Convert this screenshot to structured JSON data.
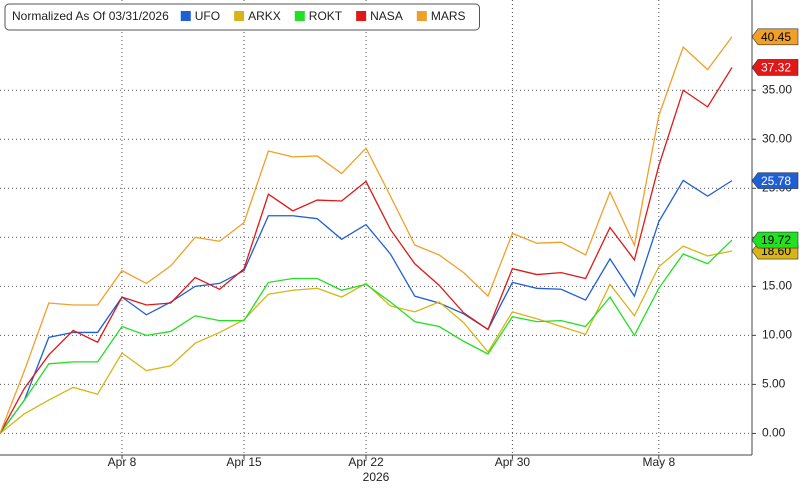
{
  "chart_data": {
    "type": "line",
    "title": "Normalized As Of 03/31/2026",
    "x_annotation": "2026",
    "categories": [
      null,
      null,
      null,
      null,
      null,
      "Apr 8",
      null,
      null,
      null,
      null,
      "Apr 15",
      null,
      null,
      null,
      null,
      "Apr 22",
      null,
      null,
      null,
      null,
      null,
      "Apr 30",
      null,
      null,
      null,
      null,
      null,
      "May 8",
      null,
      null,
      null
    ],
    "series": [
      {
        "name": "UFO",
        "color": "#1f5fd6",
        "values": [
          0,
          3.4,
          9.8,
          10.3,
          10.3,
          13.9,
          12.1,
          13.4,
          15.0,
          15.3,
          16.6,
          22.2,
          22.2,
          21.9,
          19.8,
          21.3,
          18.3,
          14.0,
          13.3,
          12.2,
          10.6,
          15.4,
          14.8,
          14.7,
          13.6,
          17.8,
          14.0,
          21.6,
          25.8,
          24.2,
          25.78
        ]
      },
      {
        "name": "ARKX",
        "color": "#d8b418",
        "values": [
          0,
          2.0,
          3.4,
          4.7,
          4.0,
          8.2,
          6.4,
          6.9,
          9.2,
          10.3,
          11.6,
          14.2,
          14.6,
          14.8,
          13.9,
          15.3,
          13.0,
          12.4,
          13.4,
          11.3,
          8.3,
          12.4,
          11.7,
          10.9,
          10.1,
          15.2,
          12.0,
          17.0,
          19.1,
          18.1,
          18.6
        ],
        "value_labels": [
          null,
          null,
          null,
          null,
          null,
          null,
          null,
          null,
          null,
          null,
          null,
          null,
          null,
          null,
          null,
          null,
          null,
          null,
          null,
          null,
          null,
          null,
          null,
          null,
          null,
          null,
          null,
          null,
          null,
          null,
          "18.60"
        ]
      },
      {
        "name": "ROKT",
        "color": "#22e022",
        "values": [
          0,
          3.4,
          7.1,
          7.3,
          7.3,
          10.9,
          10.0,
          10.4,
          12.0,
          11.5,
          11.5,
          15.4,
          15.8,
          15.8,
          14.6,
          15.2,
          13.4,
          11.4,
          10.9,
          9.4,
          8.1,
          11.9,
          11.4,
          11.5,
          10.9,
          13.9,
          10.0,
          14.8,
          18.3,
          17.3,
          19.72
        ]
      },
      {
        "name": "NASA",
        "color": "#e01818",
        "values": [
          0,
          4.6,
          8.0,
          10.5,
          9.3,
          13.9,
          13.1,
          13.3,
          15.9,
          14.7,
          16.8,
          24.4,
          22.7,
          23.8,
          23.7,
          25.7,
          20.8,
          17.3,
          15.1,
          12.3,
          10.6,
          16.8,
          16.2,
          16.4,
          15.8,
          21.0,
          17.7,
          27.3,
          35.0,
          33.3,
          37.32
        ]
      },
      {
        "name": "MARS",
        "color": "#f0a028",
        "values": [
          0,
          6.4,
          13.3,
          13.1,
          13.1,
          16.6,
          15.3,
          17.1,
          20.0,
          19.6,
          21.5,
          28.8,
          28.2,
          28.3,
          26.5,
          29.1,
          24.2,
          19.2,
          18.2,
          16.4,
          14.0,
          20.4,
          19.4,
          19.5,
          18.2,
          24.6,
          19.2,
          32.4,
          39.4,
          37.1,
          40.45
        ]
      }
    ],
    "ylim": [
      -2.2,
      44.2
    ],
    "yticks": [
      {
        "value": 0,
        "label": "0.00"
      },
      {
        "value": 5,
        "label": "5.00"
      },
      {
        "value": 10,
        "label": "10.00"
      },
      {
        "value": 15,
        "label": "15.00"
      },
      {
        "value": 20,
        "label": "20.00"
      },
      {
        "value": 25,
        "label": "25.00"
      },
      {
        "value": 30,
        "label": "30.00"
      },
      {
        "value": 35,
        "label": "35.00"
      }
    ],
    "grid": true
  }
}
